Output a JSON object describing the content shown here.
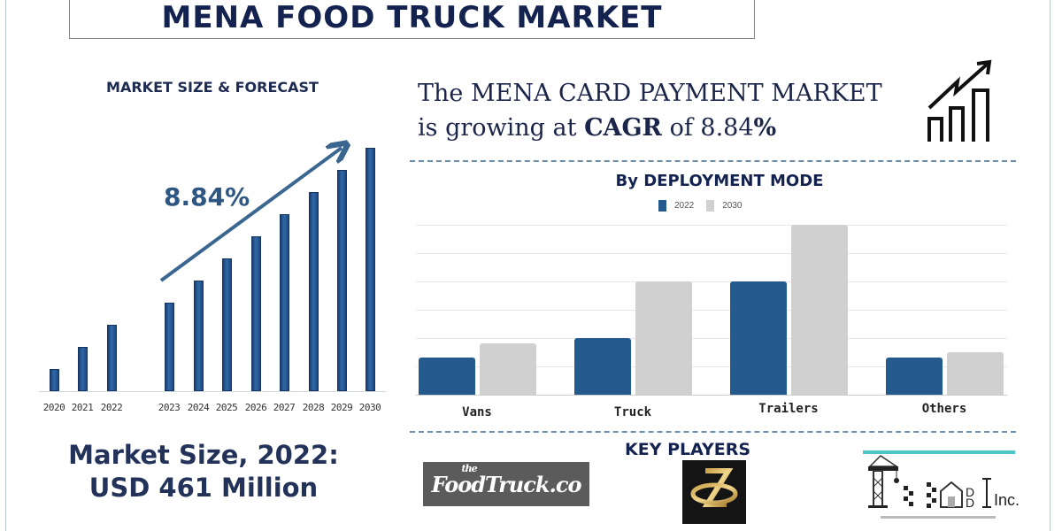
{
  "header": {
    "title": "MENA FOOD TRUCK MARKET"
  },
  "left_panel": {
    "heading": "MARKET SIZE & FORECAST",
    "cagr_label": "8.84%",
    "market_size_line1": "Market Size, 2022:",
    "market_size_line2": "USD 461 Million"
  },
  "growth_statement": {
    "line1": "The MENA CARD PAYMENT MARKET",
    "line2_prefix": "is growing at ",
    "line2_bold": "CAGR",
    "line2_mid": " of 8.84",
    "line2_pct": "%",
    "icon": "growth-chart-icon"
  },
  "right_chart": {
    "title": "By DEPLOYMENT MODE",
    "legend": [
      {
        "label": "2022",
        "color": "#245a8e"
      },
      {
        "label": "2030",
        "color": "#d0d0d0"
      }
    ]
  },
  "key_players": {
    "heading": "KEY PLAYERS",
    "logos": [
      {
        "name": "The FoodTruck.co",
        "the": "the",
        "main": "FoodTruck.co"
      },
      {
        "name": "ZL logo"
      },
      {
        "name": "TMDD Inc.",
        "text": "Inc."
      }
    ]
  },
  "colors": {
    "navy_text": "#13224f",
    "bar_blue": "#245a8e",
    "bar_grey": "#d0d0d0",
    "accent_teal": "#4fc4c4"
  },
  "chart_data": [
    {
      "type": "bar",
      "title": "MARKET SIZE & FORECAST",
      "categories": [
        "2020",
        "2021",
        "2022",
        "2023",
        "2024",
        "2025",
        "2026",
        "2027",
        "2028",
        "2029",
        "2030"
      ],
      "values": [
        1,
        2,
        3,
        4,
        5,
        6,
        7,
        8,
        9,
        10,
        11
      ],
      "annotation": "8.84%",
      "xlabel": "",
      "ylabel": "",
      "grid": false,
      "note": "Relative bar heights (no y-axis shown); arrow indicates CAGR 8.84%"
    },
    {
      "type": "bar",
      "title": "By DEPLOYMENT MODE",
      "categories": [
        "Vans",
        "Truck",
        "Trailers",
        "Others"
      ],
      "series": [
        {
          "name": "2022",
          "values": [
            1.3,
            2,
            4,
            1.3
          ]
        },
        {
          "name": "2030",
          "values": [
            1.8,
            4,
            6,
            1.5
          ]
        }
      ],
      "xlabel": "",
      "ylabel": "",
      "ylim": [
        0,
        6
      ],
      "grid": true,
      "legend_position": "top"
    }
  ]
}
